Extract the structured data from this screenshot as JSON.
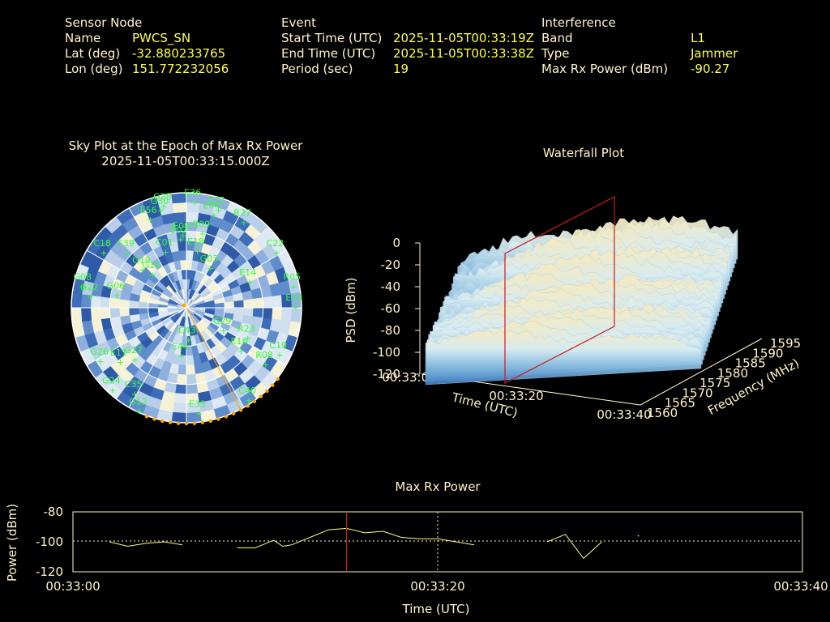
{
  "header": {
    "sensor": {
      "heading": "Sensor Node",
      "rows": [
        {
          "label": "Name",
          "value": "PWCS_SN"
        },
        {
          "label": "Lat (deg)",
          "value": "-32.880233765"
        },
        {
          "label": "Lon (deg)",
          "value": "151.772232056"
        }
      ]
    },
    "event": {
      "heading": "Event",
      "rows": [
        {
          "label": "Start Time (UTC)",
          "value": "2025-11-05T00:33:19Z"
        },
        {
          "label": "End Time (UTC)",
          "value": "2025-11-05T00:33:38Z"
        },
        {
          "label": "Period (sec)",
          "value": "19"
        }
      ]
    },
    "interference": {
      "heading": "Interference",
      "rows": [
        {
          "label": "Band",
          "value": "L1"
        },
        {
          "label": "Type",
          "value": "Jammer"
        },
        {
          "label": "Max Rx Power (dBm)",
          "value": "-90.27"
        }
      ]
    }
  },
  "colors": {
    "label": "#fff4c8",
    "value": "#ffff40",
    "satellite": "#32ff32",
    "marker": "#ffa500",
    "cursor": "#d01818",
    "line": "#ffff80"
  },
  "chart_data": [
    {
      "type": "scatter",
      "title": "Sky Plot at the Epoch of Max Rx Power",
      "subtitle": "2025-11-05T00:33:15.000Z",
      "points": [
        {
          "name": "E36",
          "az": 3,
          "el": 2
        },
        {
          "name": "G28",
          "az": 347,
          "el": 3
        },
        {
          "name": "G30",
          "az": 345,
          "el": 6
        },
        {
          "name": "C21",
          "az": 16,
          "el": 5
        },
        {
          "name": "E04",
          "az": 14,
          "el": 10
        },
        {
          "name": "R27",
          "az": 31,
          "el": 6
        },
        {
          "name": "E56",
          "az": 338,
          "el": 10
        },
        {
          "name": "R09",
          "az": 10,
          "el": 26
        },
        {
          "name": "E02",
          "az": 354,
          "el": 31
        },
        {
          "name": "E09",
          "az": 356,
          "el": 28
        },
        {
          "name": "C18",
          "az": 306,
          "el": 8
        },
        {
          "name": "C39",
          "az": 315,
          "el": 22
        },
        {
          "name": "C01",
          "az": 340,
          "el": 38
        },
        {
          "name": "E18",
          "az": 8,
          "el": 40
        },
        {
          "name": "C22",
          "az": 55,
          "el": 6
        },
        {
          "name": "G03",
          "az": 25,
          "el": 50
        },
        {
          "name": "G19",
          "az": 314,
          "el": 40
        },
        {
          "name": "E14",
          "az": 62,
          "el": 36
        },
        {
          "name": "R05",
          "az": 75,
          "el": 5
        },
        {
          "name": "E13",
          "az": 86,
          "el": 6
        },
        {
          "name": "G08",
          "az": 285,
          "el": 5
        },
        {
          "name": "G22",
          "az": 280,
          "el": 12
        },
        {
          "name": "G06",
          "az": 285,
          "el": 32
        },
        {
          "name": "G15",
          "az": 318,
          "el": 48
        },
        {
          "name": "G29",
          "az": 115,
          "el": 60
        },
        {
          "name": "G27",
          "az": 230,
          "el": 35
        },
        {
          "name": "E11",
          "az": 235,
          "el": 25
        },
        {
          "name": "G24",
          "az": 225,
          "el": 6
        },
        {
          "name": "C43",
          "az": 180,
          "el": 70
        },
        {
          "name": "C44",
          "az": 190,
          "el": 57
        },
        {
          "name": "R23",
          "az": 112,
          "el": 40
        },
        {
          "name": "E16",
          "az": 125,
          "el": 40
        },
        {
          "name": "C19",
          "az": 114,
          "el": 12
        },
        {
          "name": "R08",
          "az": 123,
          "el": 18
        },
        {
          "name": "C40",
          "az": 145,
          "el": 8
        },
        {
          "name": "G26",
          "az": 242,
          "el": 12
        },
        {
          "name": "E33",
          "az": 174,
          "el": 12
        },
        {
          "name": "C35",
          "az": 214,
          "el": 15
        },
        {
          "name": "G12",
          "az": 207,
          "el": 5
        }
      ]
    },
    {
      "type": "surface",
      "title": "Waterfall Plot",
      "xlabel": "Time (UTC)",
      "ylabel": "Frequency (MHz)",
      "zlabel": "PSD (dBm)",
      "x_ticks": [
        "00:33:00",
        "00:33:20",
        "00:33:40"
      ],
      "y_ticks": [
        "1560",
        "1565",
        "1570",
        "1575",
        "1580",
        "1585",
        "1590",
        "1595"
      ],
      "z_ticks": [
        "0",
        "-20",
        "-40",
        "-60",
        "-80",
        "-100",
        "-120"
      ],
      "zlim": [
        -120,
        0
      ],
      "cursor_time": "00:33:15"
    },
    {
      "type": "line",
      "title": "Max Rx Power",
      "xlabel": "Time (UTC)",
      "ylabel": "Power (dBm)",
      "x_ticks": [
        "00:33:00",
        "00:33:20",
        "00:33:40"
      ],
      "y_ticks": [
        "-80",
        "-100",
        "-120"
      ],
      "ylim": [
        -120,
        -80
      ],
      "xlim_sec": [
        0,
        40
      ],
      "cursor_sec": 15,
      "series": [
        {
          "x": [
            2.0,
            3.0,
            4.0,
            5.0,
            6.0
          ],
          "y": [
            -100,
            -103,
            -101,
            -100,
            -102
          ]
        },
        {
          "x": [
            9.0,
            10.0,
            11.0,
            11.5,
            12.0,
            13.0,
            14.0,
            15.0,
            16.0,
            17.0,
            18.0,
            19.0,
            20.0,
            21.0,
            22.0
          ],
          "y": [
            -104,
            -104,
            -99,
            -103,
            -102,
            -97,
            -92,
            -91,
            -94,
            -93,
            -97,
            -98,
            -98,
            -100,
            -102
          ]
        },
        {
          "x": [
            26.0,
            27.0,
            28.0,
            29.0
          ],
          "y": [
            -100,
            -95,
            -111,
            -100
          ]
        },
        {
          "x": [
            31.0
          ],
          "y": [
            -96
          ]
        }
      ]
    }
  ]
}
